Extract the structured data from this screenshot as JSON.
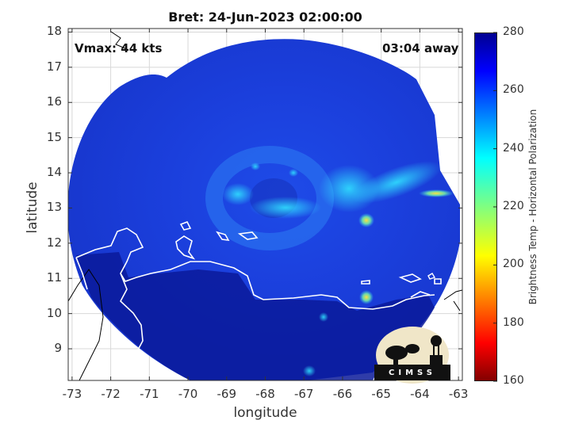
{
  "title": "Bret: 24-Jun-2023 02:00:00",
  "annotations": {
    "vmax": "Vmax: 44 kts",
    "away": "03:04 away"
  },
  "axes": {
    "xlabel": "longitude",
    "ylabel": "latitude",
    "xticks": [
      "-73",
      "-72",
      "-71",
      "-70",
      "-69",
      "-68",
      "-67",
      "-66",
      "-65",
      "-64",
      "-63"
    ],
    "yticks": [
      "9",
      "10",
      "11",
      "12",
      "13",
      "14",
      "15",
      "16",
      "17",
      "18"
    ],
    "xlim": [
      -73.1,
      -62.9
    ],
    "ylim": [
      8.1,
      18.1
    ]
  },
  "colorbar": {
    "label": "Brightness Temp - Horizontal Polarization",
    "ticks": [
      "160",
      "180",
      "200",
      "220",
      "240",
      "260",
      "280"
    ],
    "range": [
      160,
      280
    ],
    "colormap": "jet"
  },
  "storm_center": {
    "lon": -68.2,
    "lat": 13.2
  },
  "colors": {
    "background": "#1a3fd6",
    "land": "#0a1a9a",
    "coastline": "#ffffff",
    "border": "#000000"
  },
  "logo": {
    "text": "CIMSS"
  }
}
